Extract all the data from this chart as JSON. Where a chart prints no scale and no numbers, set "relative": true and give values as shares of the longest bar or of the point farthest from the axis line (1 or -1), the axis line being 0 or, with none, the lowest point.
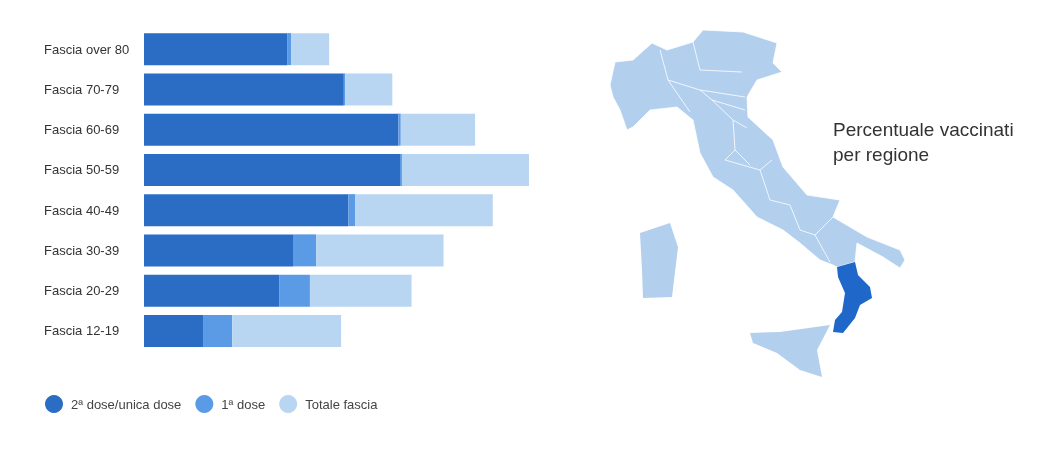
{
  "chart_data": {
    "type": "bar",
    "orientation": "horizontal",
    "stacked": true,
    "relative": true,
    "categories": [
      "Fascia over 80",
      "Fascia 70-79",
      "Fascia 60-69",
      "Fascia 50-59",
      "Fascia 40-49",
      "Fascia 30-39",
      "Fascia 20-29",
      "Fascia 12-19"
    ],
    "series": [
      {
        "name": "2ª dose/unica dose",
        "color": "#2b6cc4",
        "values": [
          0.373,
          0.519,
          0.661,
          0.665,
          0.531,
          0.387,
          0.351,
          0.155
        ]
      },
      {
        "name": "1ª dose",
        "color": "#5b9be5",
        "values": [
          0.009,
          0.004,
          0.006,
          0.005,
          0.018,
          0.06,
          0.08,
          0.074
        ]
      },
      {
        "name": "Totale fascia",
        "color": "#b8d6f2",
        "values": [
          0.099,
          0.122,
          0.193,
          0.33,
          0.357,
          0.331,
          0.264,
          0.283
        ]
      }
    ],
    "legend": "bottom left",
    "annotations": [
      "Percentuale vaccinati per regione"
    ]
  }
}
